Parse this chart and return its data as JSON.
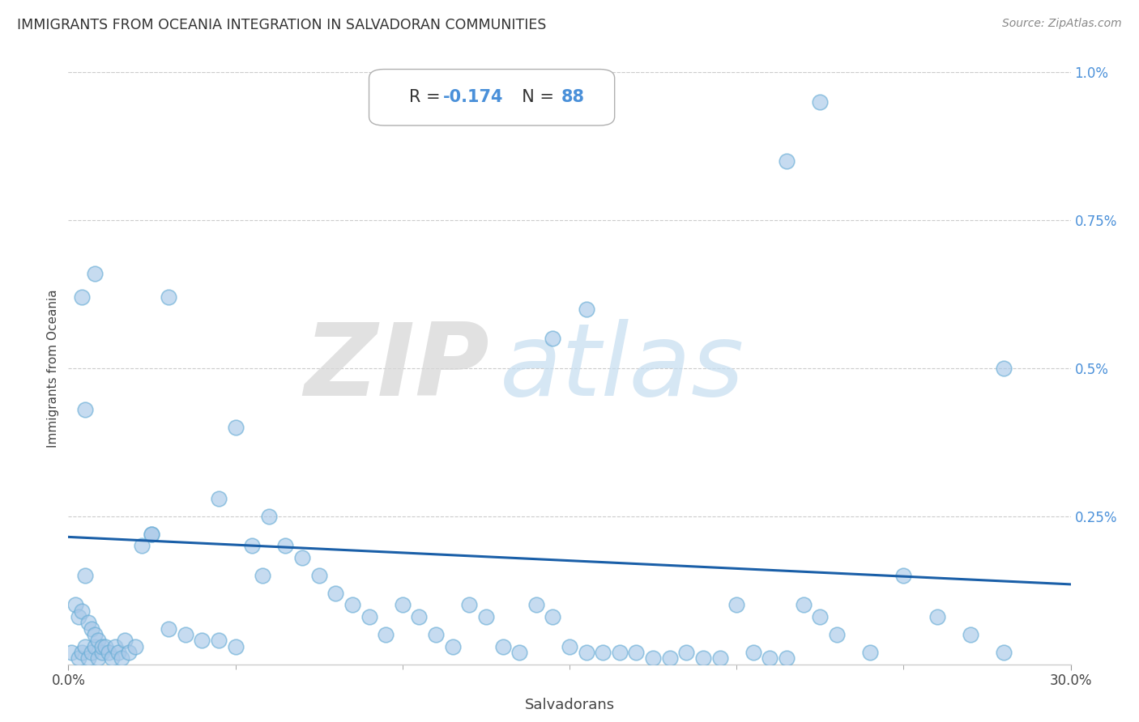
{
  "title": "IMMIGRANTS FROM OCEANIA INTEGRATION IN SALVADORAN COMMUNITIES",
  "source": "Source: ZipAtlas.com",
  "xlabel": "Salvadorans",
  "ylabel": "Immigrants from Oceania",
  "xlim": [
    0.0,
    0.3
  ],
  "ylim": [
    0.0,
    0.01
  ],
  "xtick_labels": [
    "0.0%",
    "30.0%"
  ],
  "ytick_labels": [
    "0.25%",
    "0.5%",
    "0.75%",
    "1.0%"
  ],
  "ytick_positions": [
    0.0025,
    0.005,
    0.0075,
    0.01
  ],
  "R": -0.174,
  "N": 88,
  "scatter_color": "#a8c8e8",
  "scatter_edge_color": "#6aaed6",
  "line_color": "#1a5fa8",
  "regression_y_start": 0.00215,
  "regression_y_end": 0.00135,
  "watermark_zip": "ZIP",
  "watermark_atlas": "atlas",
  "points_x": [
    0.001,
    0.002,
    0.003,
    0.003,
    0.004,
    0.004,
    0.005,
    0.005,
    0.006,
    0.006,
    0.007,
    0.007,
    0.008,
    0.008,
    0.009,
    0.009,
    0.01,
    0.01,
    0.011,
    0.012,
    0.013,
    0.014,
    0.015,
    0.016,
    0.017,
    0.018,
    0.02,
    0.022,
    0.025,
    0.03,
    0.035,
    0.04,
    0.045,
    0.05,
    0.055,
    0.058,
    0.06,
    0.065,
    0.07,
    0.075,
    0.08,
    0.085,
    0.09,
    0.095,
    0.1,
    0.105,
    0.11,
    0.115,
    0.12,
    0.125,
    0.13,
    0.135,
    0.14,
    0.145,
    0.15,
    0.155,
    0.16,
    0.165,
    0.17,
    0.175,
    0.18,
    0.185,
    0.19,
    0.195,
    0.2,
    0.205,
    0.21,
    0.215,
    0.22,
    0.225,
    0.23,
    0.24,
    0.25,
    0.26,
    0.27,
    0.28,
    0.145,
    0.155,
    0.215,
    0.225,
    0.03,
    0.05,
    0.004,
    0.008,
    0.005,
    0.025,
    0.045,
    0.28
  ],
  "points_y": [
    0.0002,
    0.001,
    0.0001,
    0.0008,
    0.0002,
    0.0009,
    0.0003,
    0.0015,
    0.0001,
    0.0007,
    0.0002,
    0.0006,
    0.0003,
    0.0005,
    0.0001,
    0.0004,
    0.0002,
    0.0003,
    0.0003,
    0.0002,
    0.0001,
    0.0003,
    0.0002,
    0.0001,
    0.0004,
    0.0002,
    0.0003,
    0.002,
    0.0022,
    0.0006,
    0.0005,
    0.0004,
    0.0004,
    0.0003,
    0.002,
    0.0015,
    0.0025,
    0.002,
    0.0018,
    0.0015,
    0.0012,
    0.001,
    0.0008,
    0.0005,
    0.001,
    0.0008,
    0.0005,
    0.0003,
    0.001,
    0.0008,
    0.0003,
    0.0002,
    0.001,
    0.0008,
    0.0003,
    0.0002,
    0.0002,
    0.0002,
    0.0002,
    0.0001,
    0.0001,
    0.0002,
    0.0001,
    0.0001,
    0.001,
    0.0002,
    0.0001,
    0.0001,
    0.001,
    0.0008,
    0.0005,
    0.0002,
    0.0015,
    0.0008,
    0.0005,
    0.0002,
    0.0055,
    0.006,
    0.0085,
    0.0095,
    0.0062,
    0.004,
    0.0062,
    0.0066,
    0.0043,
    0.0022,
    0.0028,
    0.005
  ]
}
